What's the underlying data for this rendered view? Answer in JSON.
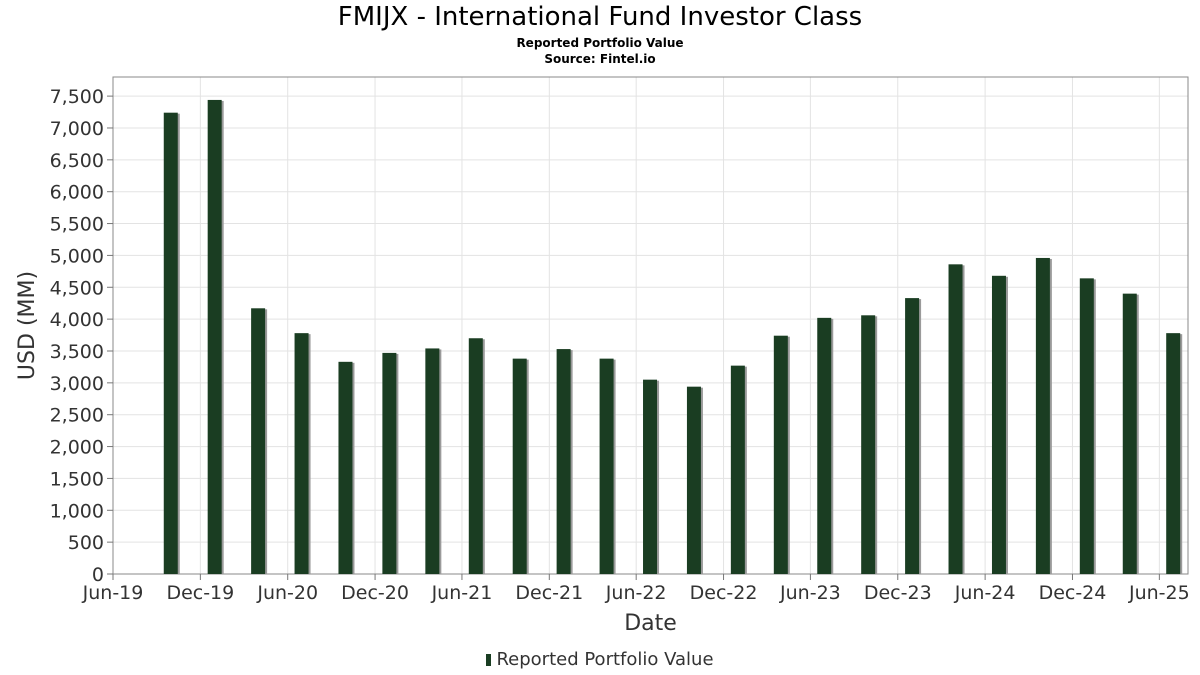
{
  "chart_data": {
    "type": "bar",
    "title": "FMIJX - International Fund Investor Class",
    "subtitle": "Reported Portfolio Value",
    "source": "Source: Fintel.io",
    "xlabel": "Date",
    "ylabel": "USD (MM)",
    "ylim": [
      0,
      7800
    ],
    "xlim": [
      "2019-06-01",
      "2025-07-31"
    ],
    "y_ticks": [
      0,
      500,
      1000,
      1500,
      2000,
      2500,
      3000,
      3500,
      4000,
      4500,
      5000,
      5500,
      6000,
      6500,
      7000,
      7500
    ],
    "x_ticks": [
      {
        "label": "Jun-19",
        "date": "2019-06-01"
      },
      {
        "label": "Dec-19",
        "date": "2019-12-01"
      },
      {
        "label": "Jun-20",
        "date": "2020-06-01"
      },
      {
        "label": "Dec-20",
        "date": "2020-12-01"
      },
      {
        "label": "Jun-21",
        "date": "2021-06-01"
      },
      {
        "label": "Dec-21",
        "date": "2021-12-01"
      },
      {
        "label": "Jun-22",
        "date": "2022-06-01"
      },
      {
        "label": "Dec-22",
        "date": "2022-12-01"
      },
      {
        "label": "Jun-23",
        "date": "2023-06-01"
      },
      {
        "label": "Dec-23",
        "date": "2023-12-01"
      },
      {
        "label": "Jun-24",
        "date": "2024-06-01"
      },
      {
        "label": "Dec-24",
        "date": "2024-12-01"
      },
      {
        "label": "Jun-25",
        "date": "2025-06-01"
      }
    ],
    "grid": true,
    "legend_position": "bottom-center",
    "series": [
      {
        "name": "Reported Portfolio Value",
        "color": "#1a3d22",
        "points": [
          {
            "date": "2019-09-30",
            "value": 7240
          },
          {
            "date": "2019-12-31",
            "value": 7440
          },
          {
            "date": "2020-03-31",
            "value": 4170
          },
          {
            "date": "2020-06-30",
            "value": 3780
          },
          {
            "date": "2020-09-30",
            "value": 3330
          },
          {
            "date": "2020-12-31",
            "value": 3470
          },
          {
            "date": "2021-03-31",
            "value": 3540
          },
          {
            "date": "2021-06-30",
            "value": 3700
          },
          {
            "date": "2021-09-30",
            "value": 3380
          },
          {
            "date": "2021-12-31",
            "value": 3530
          },
          {
            "date": "2022-03-31",
            "value": 3380
          },
          {
            "date": "2022-06-30",
            "value": 3050
          },
          {
            "date": "2022-09-30",
            "value": 2940
          },
          {
            "date": "2022-12-31",
            "value": 3270
          },
          {
            "date": "2023-03-31",
            "value": 3740
          },
          {
            "date": "2023-06-30",
            "value": 4020
          },
          {
            "date": "2023-09-30",
            "value": 4060
          },
          {
            "date": "2023-12-31",
            "value": 4330
          },
          {
            "date": "2024-03-31",
            "value": 4860
          },
          {
            "date": "2024-06-30",
            "value": 4680
          },
          {
            "date": "2024-09-30",
            "value": 4960
          },
          {
            "date": "2024-12-31",
            "value": 4640
          },
          {
            "date": "2025-03-31",
            "value": 4400
          },
          {
            "date": "2025-06-30",
            "value": 3780
          }
        ]
      }
    ]
  }
}
